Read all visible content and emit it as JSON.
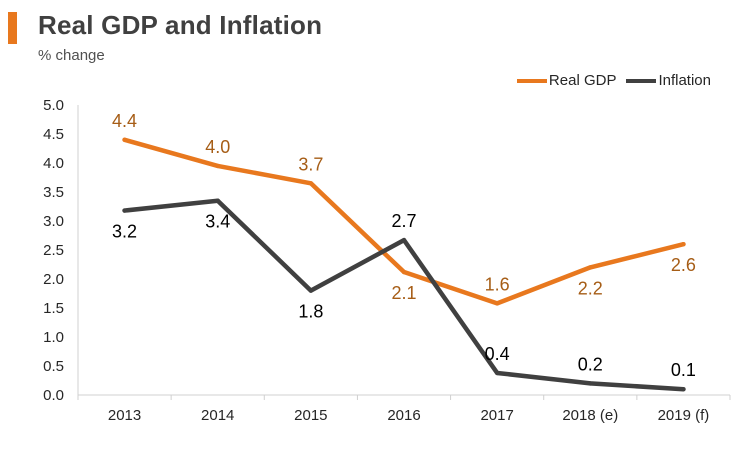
{
  "header": {
    "title": "Real GDP and Inflation",
    "subtitle": "% change"
  },
  "colors": {
    "accent": "#e8781e",
    "real_gdp": "#e8781e",
    "inflation": "#404040",
    "real_gdp_label": "#a65d16",
    "inflation_label": "#000000"
  },
  "chart_data": {
    "type": "line",
    "title": "Real GDP and Inflation",
    "subtitle": "% change",
    "xlabel": "",
    "ylabel": "% change",
    "categories": [
      "2013",
      "2014",
      "2015",
      "2016",
      "2017",
      "2018 (e)",
      "2019 (f)"
    ],
    "ylim": [
      0,
      5
    ],
    "yticks": [
      "0.0",
      "0.5",
      "1.0",
      "1.5",
      "2.0",
      "2.5",
      "3.0",
      "3.5",
      "4.0",
      "4.5",
      "5.0"
    ],
    "grid": false,
    "legend_position": "top-right",
    "series": [
      {
        "name": "Real GDP",
        "values": [
          4.4,
          3.95,
          3.65,
          2.12,
          1.58,
          2.2,
          2.6
        ],
        "labels": [
          "4.4",
          "4.0",
          "3.7",
          "2.1",
          "1.6",
          "2.2",
          "2.6"
        ],
        "label_positions": [
          "above",
          "above",
          "above",
          "below",
          "above",
          "below",
          "below"
        ]
      },
      {
        "name": "Inflation",
        "values": [
          3.18,
          3.35,
          1.8,
          2.67,
          0.38,
          0.2,
          0.1
        ],
        "labels": [
          "3.2",
          "3.4",
          "1.8",
          "2.7",
          "0.4",
          "0.2",
          "0.1"
        ],
        "label_positions": [
          "below",
          "below",
          "below",
          "above",
          "above",
          "above",
          "above"
        ]
      }
    ]
  }
}
